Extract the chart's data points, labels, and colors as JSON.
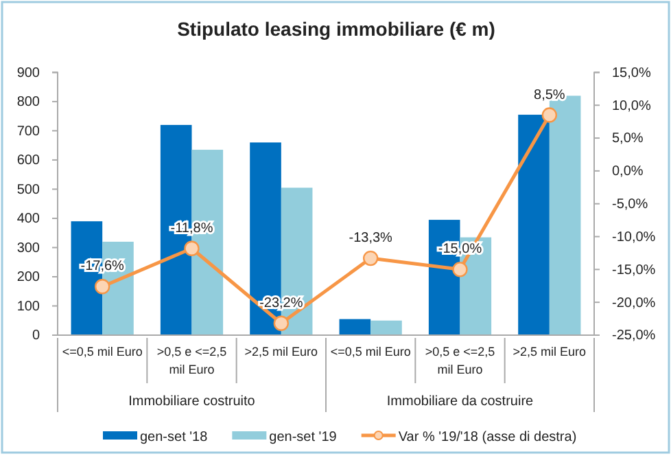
{
  "chart_data": {
    "type": "bar",
    "title": "Stipulato leasing immobiliare (€ m)",
    "categories": [
      "<=0,5 mil Euro",
      ">0,5 e <=2,5 mil Euro",
      ">2,5 mil Euro",
      "<=0,5 mil Euro",
      ">0,5 e <=2,5 mil Euro",
      ">2,5 mil Euro"
    ],
    "annotations": [
      "Immobiliare costruito",
      "Immobiliare da costruire"
    ],
    "series": [
      {
        "name": "gen-set '18",
        "color": "#0070c0",
        "values": [
          390,
          720,
          660,
          55,
          395,
          755
        ]
      },
      {
        "name": "gen-set '19",
        "color": "#92cddc",
        "values": [
          320,
          635,
          505,
          50,
          335,
          820
        ]
      },
      {
        "name": "Var % '19/'18 (asse di destra)",
        "type": "line",
        "axis": "y2",
        "color": "#f79646",
        "marker": "circle",
        "values": [
          -17.6,
          -11.8,
          -23.2,
          -13.3,
          -15.0,
          8.5
        ],
        "value_labels": [
          "-17,6%",
          "-11,8%",
          "-23,2%",
          "-13,3%",
          "-15,0%",
          "8,5%"
        ]
      }
    ],
    "ylim": [
      0,
      900
    ],
    "yticks": [
      0,
      100,
      200,
      300,
      400,
      500,
      600,
      700,
      800,
      900
    ],
    "y2lim": [
      -25,
      15
    ],
    "y2ticks": [
      {
        "value": -25,
        "label": "-25,0%"
      },
      {
        "value": -20,
        "label": "-20,0%"
      },
      {
        "value": -15,
        "label": "-15,0%"
      },
      {
        "value": -10,
        "label": "-10,0%"
      },
      {
        "value": -5,
        "label": "-5,0%"
      },
      {
        "value": 0,
        "label": "0,0%"
      },
      {
        "value": 5,
        "label": "5,0%"
      },
      {
        "value": 10,
        "label": "10,0%"
      },
      {
        "value": 15,
        "label": "15,0%"
      }
    ],
    "grid": false,
    "legend": "bottom"
  }
}
